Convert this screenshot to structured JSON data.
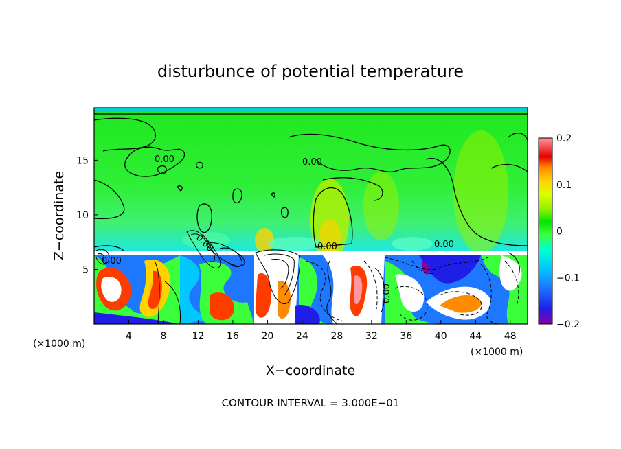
{
  "chart_data": {
    "type": "heatmap",
    "title": "disturbunce of potential temperature",
    "xlabel": "X−coordinate",
    "ylabel": "Z−coordinate",
    "x_unit_label": "(×1000 m)",
    "xlim": [
      0,
      50
    ],
    "ylim": [
      0,
      19.8
    ],
    "x_ticks": [
      "4",
      "8",
      "12",
      "16",
      "20",
      "24",
      "28",
      "32",
      "36",
      "40",
      "44",
      "48"
    ],
    "y_ticks": [
      "5",
      "10",
      "15"
    ],
    "colorbar": {
      "range": [
        -0.2,
        0.2
      ],
      "tick_labels": [
        "0.2",
        "0.1",
        "0",
        "−0.1",
        "−0.2"
      ],
      "colors": [
        "#8B00A0",
        "#1E1EE6",
        "#1E78FF",
        "#00C8FF",
        "#00FFD2",
        "#00FF78",
        "#3CFF3C",
        "#00E600",
        "#96F000",
        "#DCFF00",
        "#FFD200",
        "#FF8C00",
        "#FF3C00",
        "#E60000",
        "#FF96A0"
      ]
    },
    "contour_interval_text": "CONTOUR INTERVAL = 3.000E−01",
    "contour_labels": [
      "0.00",
      "0.00",
      "0.00",
      "0.00",
      "0.00",
      "0.00",
      "0.00"
    ]
  }
}
